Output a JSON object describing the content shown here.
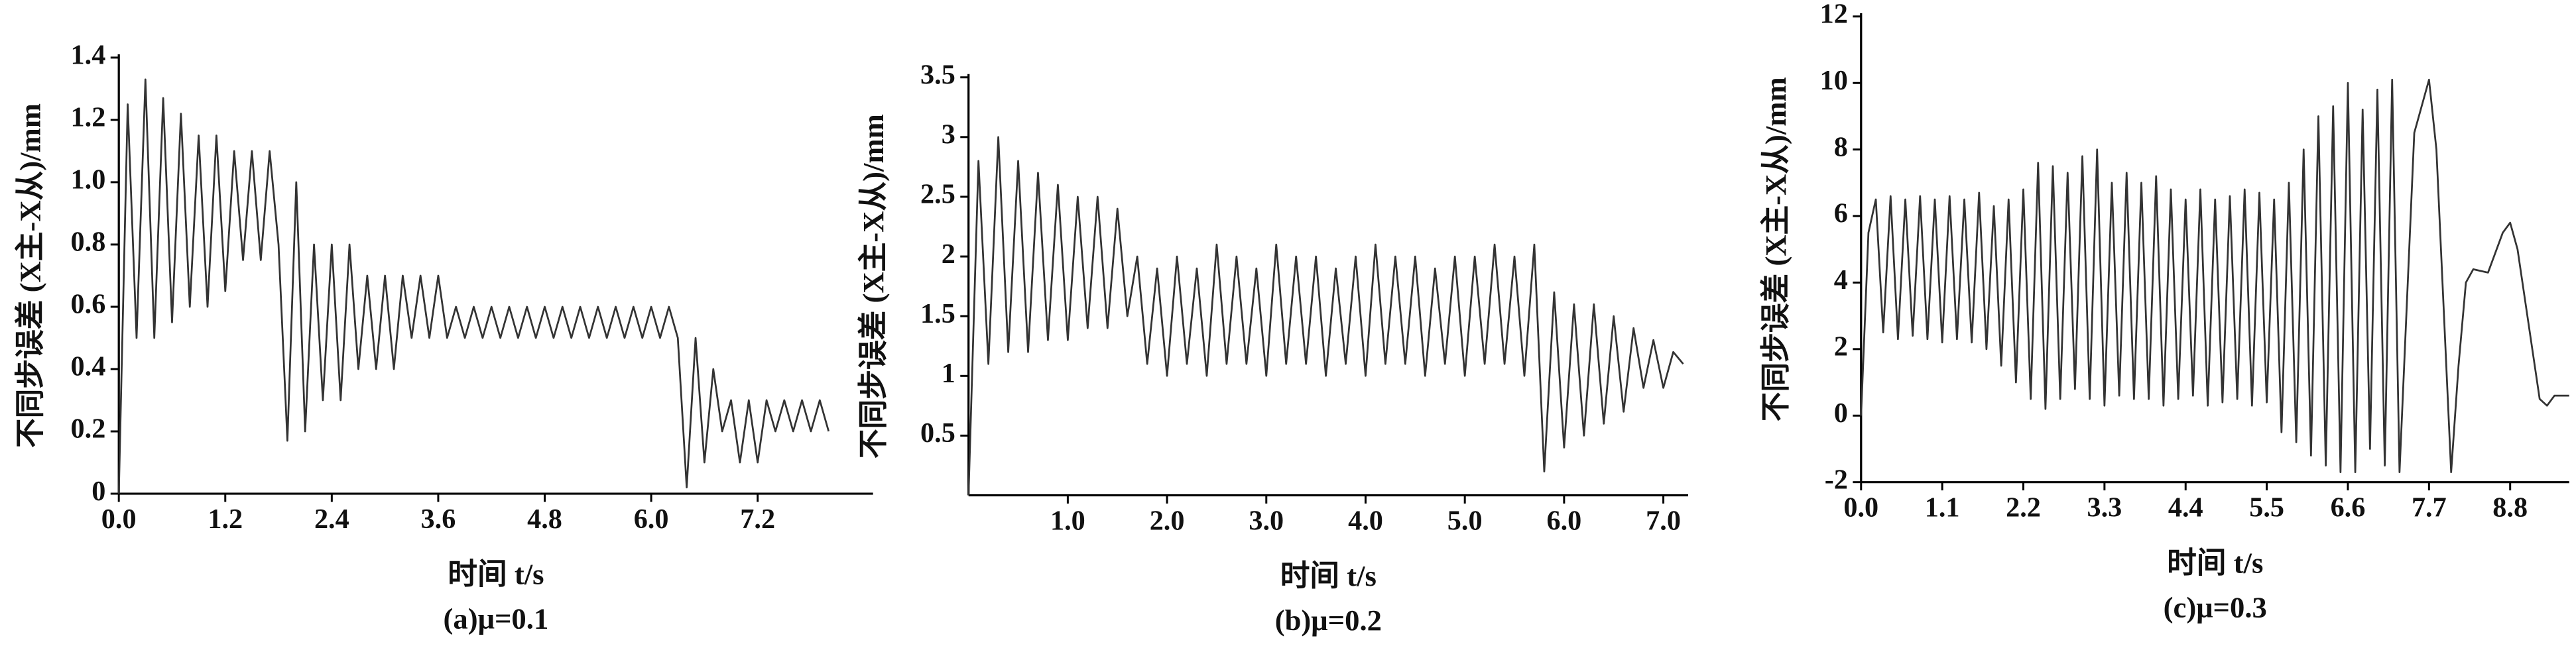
{
  "chart_data": [
    {
      "type": "line",
      "y_label": "不同步误差 (X主-X从)/mm",
      "x_label": "时间 t/s",
      "caption": "(a)μ=0.1",
      "color": "#333333",
      "xlim": [
        0,
        8.5
      ],
      "ylim": [
        0,
        1.4
      ],
      "xticks": [
        {
          "value": 0,
          "label": "0.0"
        },
        1.2,
        2.4,
        3.6,
        4.8,
        {
          "value": 6,
          "label": "6.0"
        },
        7.2
      ],
      "yticks": [
        0,
        0.2,
        0.4,
        0.6,
        0.8,
        {
          "value": 1,
          "label": "1.0"
        },
        1.2,
        1.4
      ],
      "x": [
        0,
        0.1,
        0.2,
        0.3,
        0.4,
        0.5,
        0.6,
        0.7,
        0.8,
        0.9,
        1.0,
        1.1,
        1.2,
        1.3,
        1.4,
        1.5,
        1.6,
        1.7,
        1.8,
        1.9,
        2.0,
        2.1,
        2.2,
        2.3,
        2.4,
        2.5,
        2.6,
        2.7,
        2.8,
        2.9,
        3.0,
        3.1,
        3.2,
        3.3,
        3.4,
        3.5,
        3.6,
        3.7,
        3.8,
        3.9,
        4.0,
        4.1,
        4.2,
        4.3,
        4.4,
        4.5,
        4.6,
        4.7,
        4.8,
        4.9,
        5.0,
        5.1,
        5.2,
        5.3,
        5.4,
        5.5,
        5.6,
        5.7,
        5.8,
        5.9,
        6.0,
        6.1,
        6.2,
        6.3,
        6.4,
        6.5,
        6.6,
        6.7,
        6.8,
        6.9,
        7.0,
        7.1,
        7.2,
        7.3,
        7.4,
        7.5,
        7.6,
        7.7,
        7.8,
        7.9,
        8.0
      ],
      "values": [
        0,
        1.25,
        0.5,
        1.33,
        0.5,
        1.27,
        0.55,
        1.22,
        0.6,
        1.15,
        0.6,
        1.15,
        0.65,
        1.1,
        0.75,
        1.1,
        0.75,
        1.1,
        0.8,
        0.17,
        1.0,
        0.2,
        0.8,
        0.3,
        0.8,
        0.3,
        0.8,
        0.4,
        0.7,
        0.4,
        0.7,
        0.4,
        0.7,
        0.5,
        0.7,
        0.5,
        0.7,
        0.5,
        0.6,
        0.5,
        0.6,
        0.5,
        0.6,
        0.5,
        0.6,
        0.5,
        0.6,
        0.5,
        0.6,
        0.5,
        0.6,
        0.5,
        0.6,
        0.5,
        0.6,
        0.5,
        0.6,
        0.5,
        0.6,
        0.5,
        0.6,
        0.5,
        0.6,
        0.5,
        0.02,
        0.5,
        0.1,
        0.4,
        0.2,
        0.3,
        0.1,
        0.3,
        0.1,
        0.3,
        0.2,
        0.3,
        0.2,
        0.3,
        0.2,
        0.3,
        0.2
      ]
    },
    {
      "type": "line",
      "y_label": "不同步误差 (X主-X从)/mm",
      "x_label": "时间 t/s",
      "caption": "(b)μ=0.2",
      "color": "#333333",
      "xlim": [
        0,
        7.25
      ],
      "ylim": [
        0,
        3.5
      ],
      "xticks": [
        {
          "value": 1,
          "label": "1.0"
        },
        {
          "value": 2,
          "label": "2.0"
        },
        {
          "value": 3,
          "label": "3.0"
        },
        {
          "value": 4,
          "label": "4.0"
        },
        {
          "value": 5,
          "label": "5.0"
        },
        {
          "value": 6,
          "label": "6.0"
        },
        {
          "value": 7,
          "label": "7.0"
        }
      ],
      "yticks": [
        0.5,
        1,
        1.5,
        2,
        2.5,
        3,
        3.5
      ],
      "x": [
        0,
        0.1,
        0.2,
        0.3,
        0.4,
        0.5,
        0.6,
        0.7,
        0.8,
        0.9,
        1.0,
        1.1,
        1.2,
        1.3,
        1.4,
        1.5,
        1.6,
        1.7,
        1.8,
        1.9,
        2.0,
        2.1,
        2.2,
        2.3,
        2.4,
        2.5,
        2.6,
        2.7,
        2.8,
        2.9,
        3.0,
        3.1,
        3.2,
        3.3,
        3.4,
        3.5,
        3.6,
        3.7,
        3.8,
        3.9,
        4.0,
        4.1,
        4.2,
        4.3,
        4.4,
        4.5,
        4.6,
        4.7,
        4.8,
        4.9,
        5.0,
        5.1,
        5.2,
        5.3,
        5.4,
        5.5,
        5.6,
        5.7,
        5.8,
        5.9,
        6.0,
        6.1,
        6.2,
        6.3,
        6.4,
        6.5,
        6.6,
        6.7,
        6.8,
        6.9,
        7.0,
        7.1,
        7.2
      ],
      "values": [
        0,
        2.8,
        1.1,
        3.0,
        1.2,
        2.8,
        1.2,
        2.7,
        1.3,
        2.6,
        1.3,
        2.5,
        1.4,
        2.5,
        1.4,
        2.4,
        1.5,
        2.0,
        1.1,
        1.9,
        1.0,
        2.0,
        1.1,
        1.9,
        1.0,
        2.1,
        1.1,
        2.0,
        1.1,
        1.9,
        1.0,
        2.1,
        1.1,
        2.0,
        1.1,
        2.0,
        1.0,
        1.9,
        1.1,
        2.0,
        1.0,
        2.1,
        1.1,
        2.0,
        1.1,
        2.0,
        1.0,
        1.9,
        1.1,
        2.0,
        1.0,
        2.0,
        1.1,
        2.1,
        1.1,
        2.0,
        1.0,
        2.1,
        0.2,
        1.7,
        0.4,
        1.6,
        0.5,
        1.6,
        0.6,
        1.5,
        0.7,
        1.4,
        0.9,
        1.3,
        0.9,
        1.2,
        1.1
      ]
    },
    {
      "type": "line",
      "y_label": "不同步误差 (X主-X从)/mm",
      "x_label": "时间 t/s",
      "caption": "(c)μ=0.3",
      "color": "#333333",
      "xlim": [
        0,
        9.6
      ],
      "ylim": [
        -2,
        12
      ],
      "xticks": [
        {
          "value": 0,
          "label": "0.0"
        },
        1.1,
        2.2,
        3.3,
        4.4,
        5.5,
        6.6,
        7.7,
        8.8
      ],
      "yticks": [
        -2,
        0,
        2,
        4,
        6,
        8,
        10,
        12
      ],
      "x": [
        0,
        0.1,
        0.2,
        0.3,
        0.4,
        0.5,
        0.6,
        0.7,
        0.8,
        0.9,
        1.0,
        1.1,
        1.2,
        1.3,
        1.4,
        1.5,
        1.6,
        1.7,
        1.8,
        1.9,
        2.0,
        2.1,
        2.2,
        2.3,
        2.4,
        2.5,
        2.6,
        2.7,
        2.8,
        2.9,
        3.0,
        3.1,
        3.2,
        3.3,
        3.4,
        3.5,
        3.6,
        3.7,
        3.8,
        3.9,
        4.0,
        4.1,
        4.2,
        4.3,
        4.4,
        4.5,
        4.6,
        4.7,
        4.8,
        4.9,
        5.0,
        5.1,
        5.2,
        5.3,
        5.4,
        5.5,
        5.6,
        5.7,
        5.8,
        5.9,
        6.0,
        6.1,
        6.2,
        6.3,
        6.4,
        6.5,
        6.6,
        6.7,
        6.8,
        6.9,
        7.0,
        7.1,
        7.2,
        7.3,
        7.5,
        7.7,
        7.8,
        8.0,
        8.1,
        8.2,
        8.3,
        8.5,
        8.7,
        8.8,
        8.9,
        9.1,
        9.2,
        9.3,
        9.4,
        9.6
      ],
      "values": [
        0,
        5.5,
        6.5,
        2.5,
        6.6,
        2.3,
        6.5,
        2.4,
        6.6,
        2.3,
        6.5,
        2.2,
        6.6,
        2.3,
        6.5,
        2.2,
        6.7,
        2.0,
        6.3,
        1.5,
        6.5,
        1.0,
        6.8,
        0.5,
        7.6,
        0.2,
        7.5,
        0.5,
        7.3,
        0.8,
        7.8,
        0.5,
        8.0,
        0.3,
        7.0,
        0.6,
        7.3,
        0.5,
        7.0,
        0.5,
        7.2,
        0.3,
        6.8,
        0.5,
        6.5,
        0.6,
        6.8,
        0.3,
        6.5,
        0.4,
        6.6,
        0.5,
        6.8,
        0.3,
        6.7,
        0.4,
        6.5,
        -0.5,
        7.0,
        -0.8,
        8.0,
        -1.2,
        9.0,
        -1.5,
        9.3,
        -1.7,
        10.0,
        -1.7,
        9.2,
        -1.0,
        9.8,
        -1.5,
        10.1,
        -1.7,
        8.5,
        10.1,
        8,
        -1.7,
        1.5,
        4.0,
        4.4,
        4.3,
        5.5,
        5.8,
        5.0,
        2.0,
        0.5,
        0.3,
        0.6,
        0.6
      ]
    }
  ]
}
